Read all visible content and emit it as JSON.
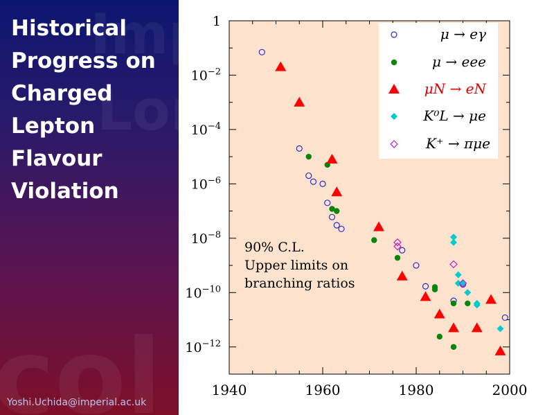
{
  "slide": {
    "title": "Historical\nProgress on\nCharged\nLepton\nFlavour\nViolation",
    "footer": "Yoshi.Uchida@imperial.ac.uk",
    "watermarks": [
      "Impe",
      "Lond",
      "col"
    ]
  },
  "colors": {
    "panel_top": "#0c1670",
    "panel_bottom": "#7d0f28",
    "plot_background": "#fde3cd",
    "mu_e_gamma": "#2b2bd0",
    "mu_eee": "#0a840a",
    "muN_eN": "#ff0000",
    "KL_mu_e": "#00cccc",
    "K_pi_mu_e": "#c020c0"
  },
  "chart_data": {
    "type": "scatter",
    "y_scale": "log",
    "xlim": [
      1940,
      2000
    ],
    "ylim": [
      1e-13,
      1
    ],
    "x_ticks": [
      "1940",
      "1960",
      "1980",
      "2000"
    ],
    "y_ticks": [
      {
        "base": "1",
        "exp": ""
      },
      {
        "base": "10",
        "exp": "−2"
      },
      {
        "base": "10",
        "exp": "−4"
      },
      {
        "base": "10",
        "exp": "−6"
      },
      {
        "base": "10",
        "exp": "−8"
      },
      {
        "base": "10",
        "exp": "−10"
      },
      {
        "base": "10",
        "exp": "−12"
      }
    ],
    "legend_position": "top-right",
    "annotation": [
      "90% C.L.",
      "Upper limits on",
      "branching ratios"
    ],
    "series": [
      {
        "name": "μ → eγ",
        "marker": "open-circle",
        "color": "#2b2bd0",
        "points": [
          [
            1947,
            0.07
          ],
          [
            1955,
            2e-05
          ],
          [
            1957,
            2e-06
          ],
          [
            1958,
            1.2e-06
          ],
          [
            1960,
            1e-06
          ],
          [
            1961,
            2e-07
          ],
          [
            1962,
            6e-08
          ],
          [
            1963,
            3e-08
          ],
          [
            1964,
            2.2e-08
          ],
          [
            1977,
            3.6e-09
          ],
          [
            1980,
            1e-09
          ],
          [
            1982,
            1.7e-10
          ],
          [
            1988,
            5e-11
          ],
          [
            1990,
            2e-10
          ],
          [
            1999,
            1.2e-11
          ]
        ]
      },
      {
        "name": "μ → eee",
        "marker": "filled-circle",
        "color": "#0a840a",
        "points": [
          [
            1957,
            1e-05
          ],
          [
            1961,
            5e-06
          ],
          [
            1962,
            1.2e-07
          ],
          [
            1963,
            1e-07
          ],
          [
            1971,
            8.5e-09
          ],
          [
            1976,
            1.9e-09
          ],
          [
            1984,
            1.6e-10
          ],
          [
            1984,
            1.3e-10
          ],
          [
            1985,
            2.4e-12
          ],
          [
            1988,
            1e-12
          ],
          [
            1988,
            4e-11
          ],
          [
            1991,
            4e-11
          ]
        ]
      },
      {
        "name": "μN → eN",
        "marker": "filled-triangle",
        "color": "#ff0000",
        "points": [
          [
            1951,
            0.02
          ],
          [
            1955,
            0.001
          ],
          [
            1962,
            8e-06
          ],
          [
            1963,
            5e-07
          ],
          [
            1972,
            2.6e-08
          ],
          [
            1977,
            4e-10
          ],
          [
            1982,
            7e-11
          ],
          [
            1985,
            1.6e-11
          ],
          [
            1988,
            5e-12
          ],
          [
            1993,
            5e-12
          ],
          [
            1996,
            5.5e-11
          ],
          [
            1998,
            7e-13
          ]
        ]
      },
      {
        "name": "K⁰L → μe",
        "marker": "filled-diamond",
        "color": "#00cccc",
        "points": [
          [
            1988,
            1.1e-08
          ],
          [
            1988,
            7e-09
          ],
          [
            1989,
            4.5e-10
          ],
          [
            1989,
            2.2e-10
          ],
          [
            1990,
            2.2e-10
          ],
          [
            1991,
            1e-10
          ],
          [
            1993,
            4e-11
          ],
          [
            1993,
            3.5e-11
          ],
          [
            1998,
            4.7e-12
          ]
        ]
      },
      {
        "name": "K⁺ → πμe",
        "marker": "open-diamond",
        "color": "#c020c0",
        "points": [
          [
            1976,
            7e-09
          ],
          [
            1976,
            5e-09
          ],
          [
            1988,
            1.1e-09
          ],
          [
            1990,
            2.2e-10
          ]
        ]
      }
    ]
  }
}
